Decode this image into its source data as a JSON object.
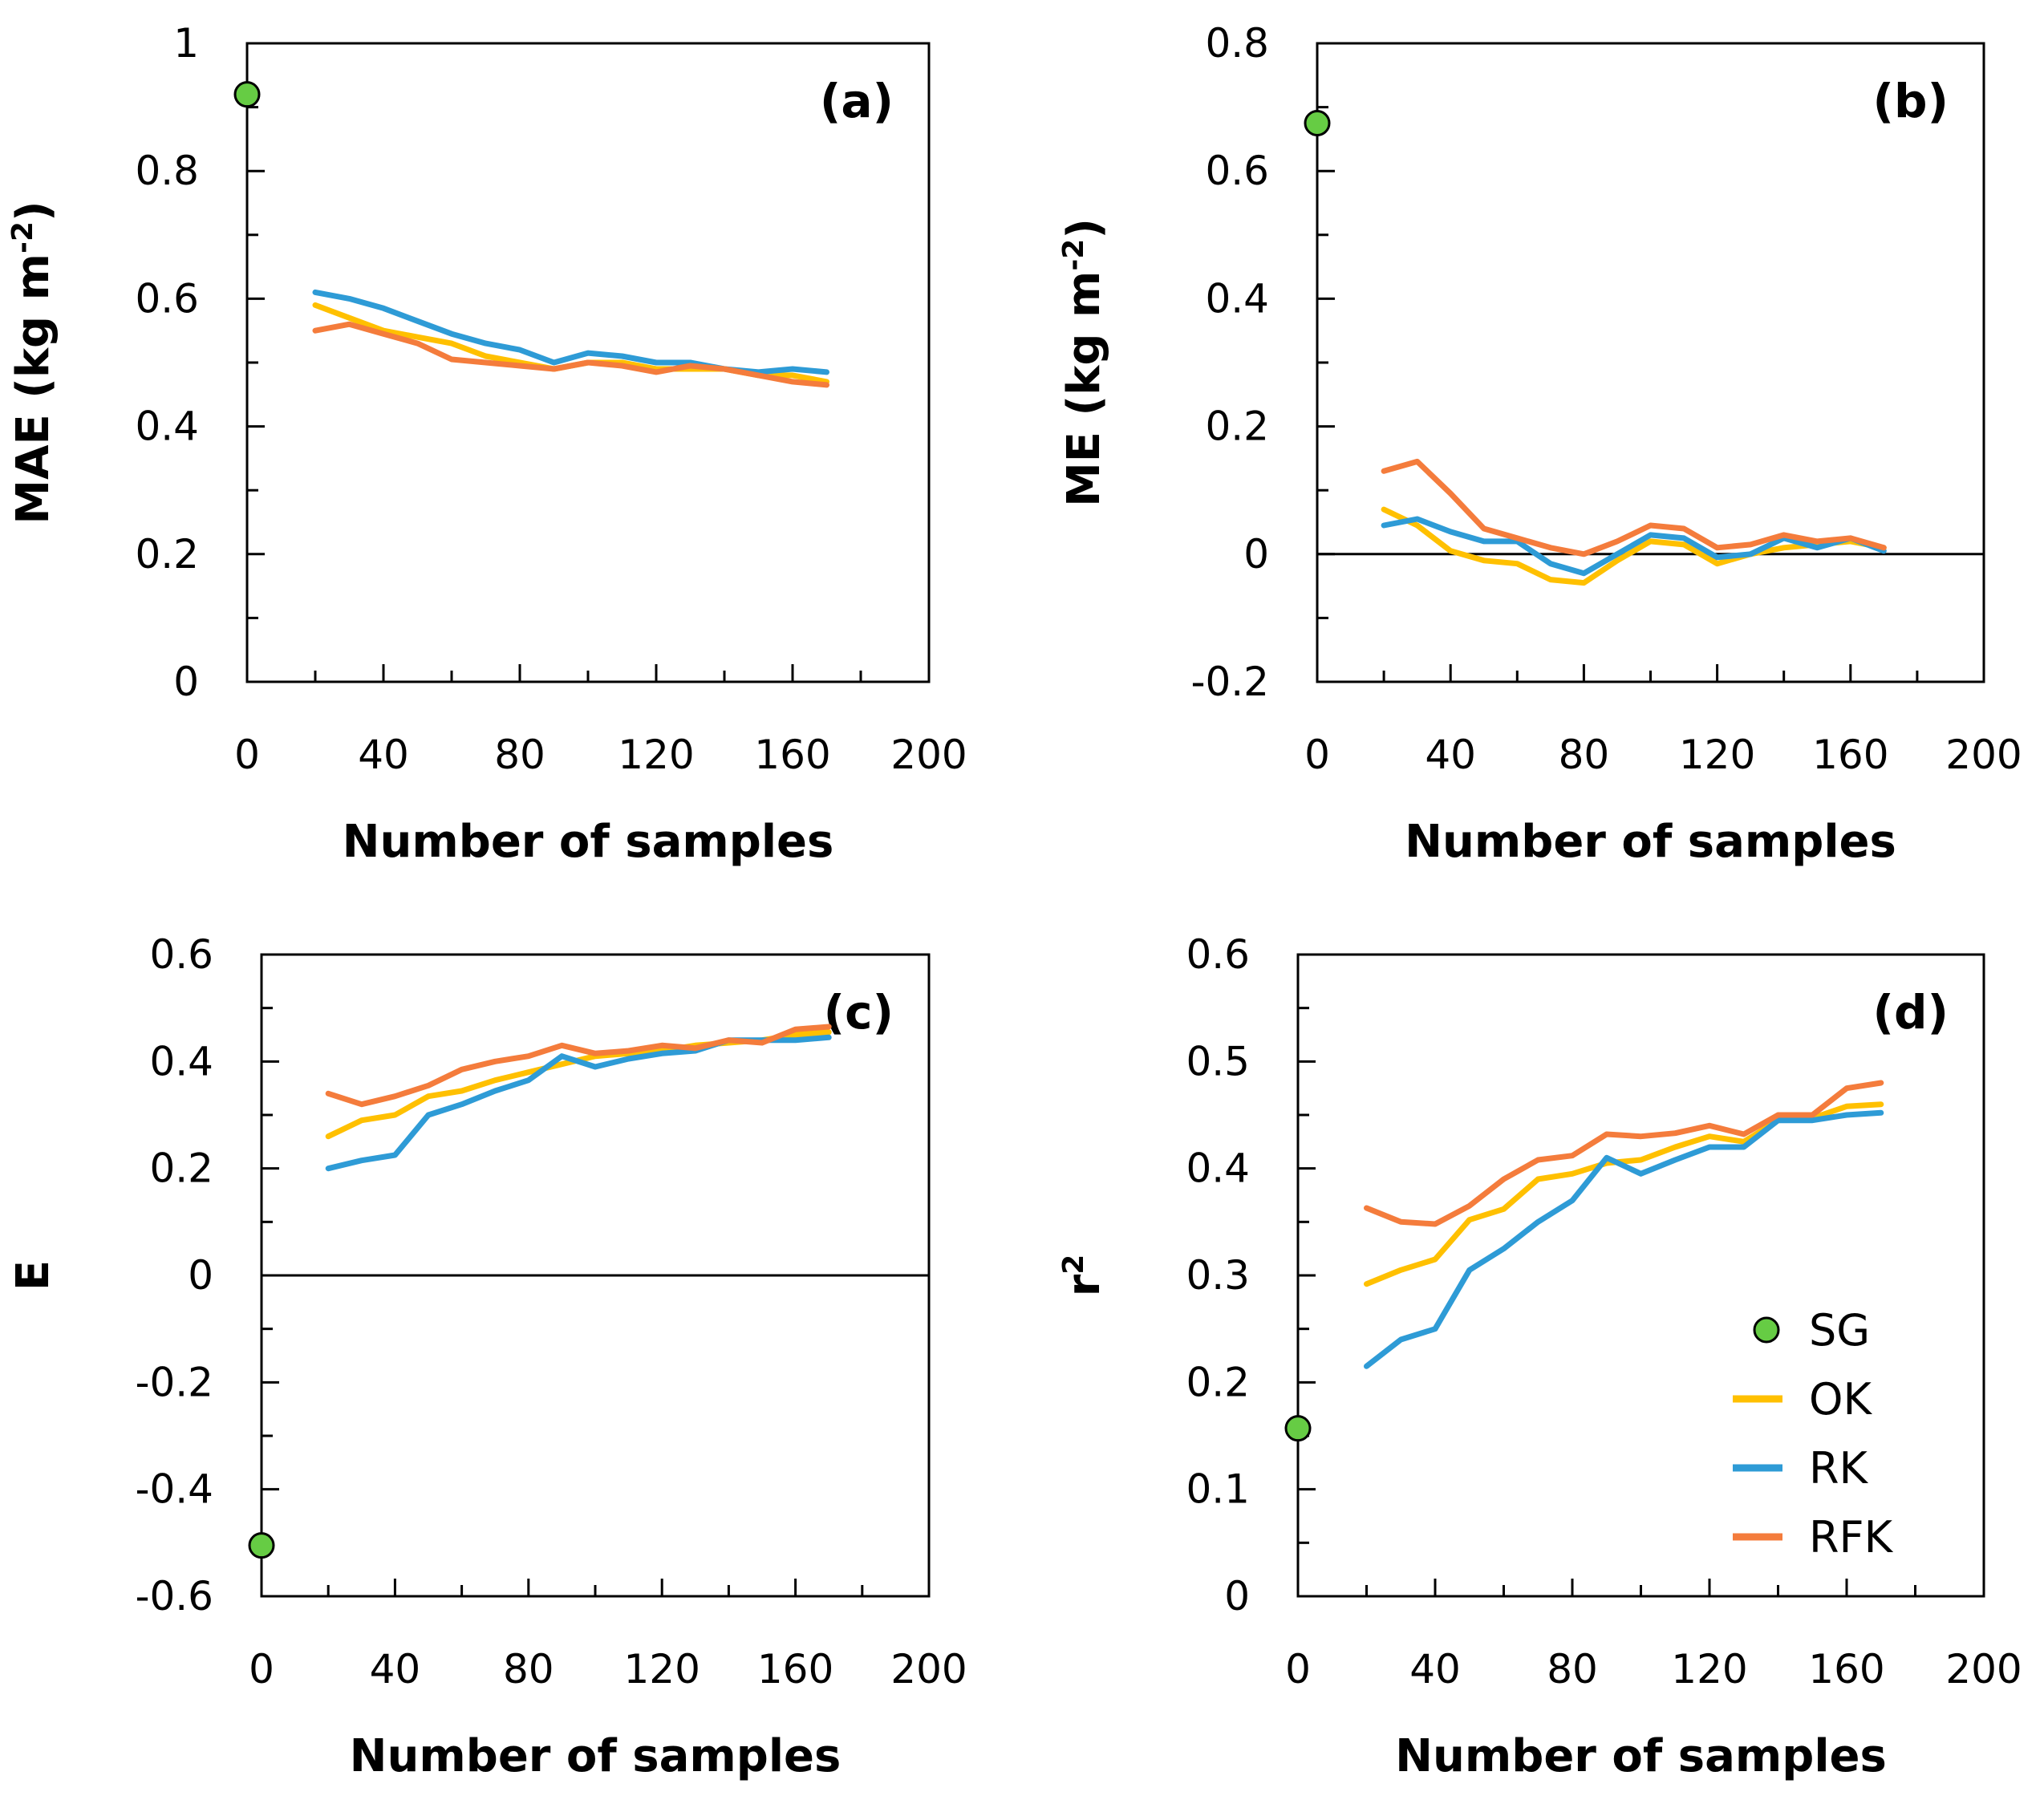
{
  "colors": {
    "SG": "#66cc44",
    "OK": "#ffc000",
    "RK": "#2e9bd6",
    "RFK": "#f47c3c"
  },
  "legend": {
    "SG": "SG",
    "OK": "OK",
    "RK": "RK",
    "RFK": "RFK"
  },
  "chart_data": [
    {
      "type": "line",
      "panel_label": "(a)",
      "xlabel": "Number of samples",
      "ylabel": "MAE (kg m-2)",
      "ylabel_main": "MAE (kg m",
      "ylabel_sup": "-2",
      "ylabel_end": ")",
      "xlim": [
        0,
        200
      ],
      "ylim": [
        0,
        1
      ],
      "x_tick_labels": [
        "0",
        "40",
        "80",
        "120",
        "160",
        "200"
      ],
      "y_tick_labels": [
        "0",
        "0.2",
        "0.4",
        "0.6",
        "0.8",
        "1"
      ],
      "zero_line": false,
      "sg_point": {
        "x": 0,
        "y": 0.92
      },
      "x": [
        20,
        30,
        40,
        50,
        60,
        70,
        80,
        90,
        100,
        110,
        120,
        130,
        140,
        150,
        160,
        170
      ],
      "series": [
        {
          "name": "OK",
          "values": [
            0.59,
            0.57,
            0.55,
            0.54,
            0.53,
            0.51,
            0.5,
            0.49,
            0.5,
            0.5,
            0.49,
            0.49,
            0.49,
            0.48,
            0.48,
            0.47
          ]
        },
        {
          "name": "RK",
          "values": [
            0.61,
            0.6,
            0.585,
            0.565,
            0.545,
            0.53,
            0.52,
            0.5,
            0.515,
            0.51,
            0.5,
            0.5,
            0.49,
            0.485,
            0.49,
            0.485
          ]
        },
        {
          "name": "RFK",
          "values": [
            0.55,
            0.56,
            0.545,
            0.53,
            0.505,
            0.5,
            0.495,
            0.49,
            0.5,
            0.495,
            0.485,
            0.495,
            0.49,
            0.48,
            0.47,
            0.465
          ]
        }
      ]
    },
    {
      "type": "line",
      "panel_label": "(b)",
      "xlabel": "Number of samples",
      "ylabel": "ME (kg m-2)",
      "ylabel_main": "ME (kg m",
      "ylabel_sup": "-2",
      "ylabel_end": ")",
      "xlim": [
        0,
        200
      ],
      "ylim": [
        -0.2,
        0.8
      ],
      "x_tick_labels": [
        "0",
        "40",
        "80",
        "120",
        "160",
        "200"
      ],
      "y_tick_labels": [
        "-0.2",
        "0",
        "0.2",
        "0.4",
        "0.6",
        "0.8"
      ],
      "zero_line": true,
      "sg_point": {
        "x": 0,
        "y": 0.675
      },
      "x": [
        20,
        30,
        40,
        50,
        60,
        70,
        80,
        90,
        100,
        110,
        120,
        130,
        140,
        150,
        160,
        170
      ],
      "series": [
        {
          "name": "OK",
          "values": [
            0.07,
            0.045,
            0.005,
            -0.01,
            -0.015,
            -0.04,
            -0.045,
            -0.01,
            0.02,
            0.015,
            -0.015,
            0.0,
            0.01,
            0.015,
            0.02,
            0.01
          ]
        },
        {
          "name": "RK",
          "values": [
            0.045,
            0.055,
            0.035,
            0.02,
            0.02,
            -0.015,
            -0.03,
            0.0,
            0.03,
            0.025,
            -0.005,
            0.0,
            0.025,
            0.01,
            0.025,
            0.005
          ]
        },
        {
          "name": "RFK",
          "values": [
            0.13,
            0.145,
            0.095,
            0.04,
            0.025,
            0.01,
            0.0,
            0.02,
            0.045,
            0.04,
            0.01,
            0.015,
            0.03,
            0.02,
            0.025,
            0.01
          ]
        }
      ]
    },
    {
      "type": "line",
      "panel_label": "(c)",
      "xlabel": "Number of samples",
      "ylabel": "E",
      "ylabel_main": "E",
      "ylabel_sup": "",
      "ylabel_end": "",
      "xlim": [
        0,
        200
      ],
      "ylim": [
        -0.6,
        0.6
      ],
      "x_tick_labels": [
        "0",
        "40",
        "80",
        "120",
        "160",
        "200"
      ],
      "y_tick_labels": [
        "-0.6",
        "-0.4",
        "-0.2",
        "0",
        "0.2",
        "0.4",
        "0.6"
      ],
      "zero_line": true,
      "sg_point": {
        "x": 0,
        "y": -0.505
      },
      "x": [
        20,
        30,
        40,
        50,
        60,
        70,
        80,
        90,
        100,
        110,
        120,
        130,
        140,
        150,
        160,
        170
      ],
      "series": [
        {
          "name": "OK",
          "values": [
            0.26,
            0.29,
            0.3,
            0.335,
            0.345,
            0.365,
            0.38,
            0.395,
            0.41,
            0.415,
            0.42,
            0.43,
            0.435,
            0.44,
            0.45,
            0.455
          ]
        },
        {
          "name": "RK",
          "values": [
            0.2,
            0.215,
            0.225,
            0.3,
            0.32,
            0.345,
            0.365,
            0.41,
            0.39,
            0.405,
            0.415,
            0.42,
            0.44,
            0.44,
            0.44,
            0.445
          ]
        },
        {
          "name": "RFK",
          "values": [
            0.34,
            0.32,
            0.335,
            0.355,
            0.385,
            0.4,
            0.41,
            0.43,
            0.415,
            0.42,
            0.43,
            0.425,
            0.44,
            0.435,
            0.46,
            0.465
          ]
        }
      ]
    },
    {
      "type": "line",
      "panel_label": "(d)",
      "xlabel": "Number of samples",
      "ylabel": "r2",
      "ylabel_main": "r",
      "ylabel_sup": "2",
      "ylabel_end": "",
      "xlim": [
        0,
        200
      ],
      "ylim": [
        0,
        0.6
      ],
      "x_tick_labels": [
        "0",
        "40",
        "80",
        "120",
        "160",
        "200"
      ],
      "y_tick_labels": [
        "0",
        "0.1",
        "0.2",
        "0.3",
        "0.4",
        "0.5",
        "0.6"
      ],
      "zero_line": false,
      "sg_point": {
        "x": 0,
        "y": 0.157
      },
      "legend_position": "bottom-right",
      "x": [
        20,
        30,
        40,
        50,
        60,
        70,
        80,
        90,
        100,
        110,
        120,
        130,
        140,
        150,
        160,
        170
      ],
      "series": [
        {
          "name": "OK",
          "values": [
            0.292,
            0.305,
            0.315,
            0.352,
            0.362,
            0.39,
            0.395,
            0.405,
            0.408,
            0.42,
            0.43,
            0.425,
            0.445,
            0.447,
            0.458,
            0.46
          ]
        },
        {
          "name": "RK",
          "values": [
            0.215,
            0.24,
            0.25,
            0.305,
            0.325,
            0.35,
            0.37,
            0.41,
            0.395,
            0.408,
            0.42,
            0.42,
            0.445,
            0.445,
            0.45,
            0.452
          ]
        },
        {
          "name": "RFK",
          "values": [
            0.363,
            0.35,
            0.348,
            0.365,
            0.39,
            0.408,
            0.412,
            0.432,
            0.43,
            0.433,
            0.44,
            0.432,
            0.45,
            0.45,
            0.475,
            0.48
          ]
        }
      ]
    }
  ]
}
